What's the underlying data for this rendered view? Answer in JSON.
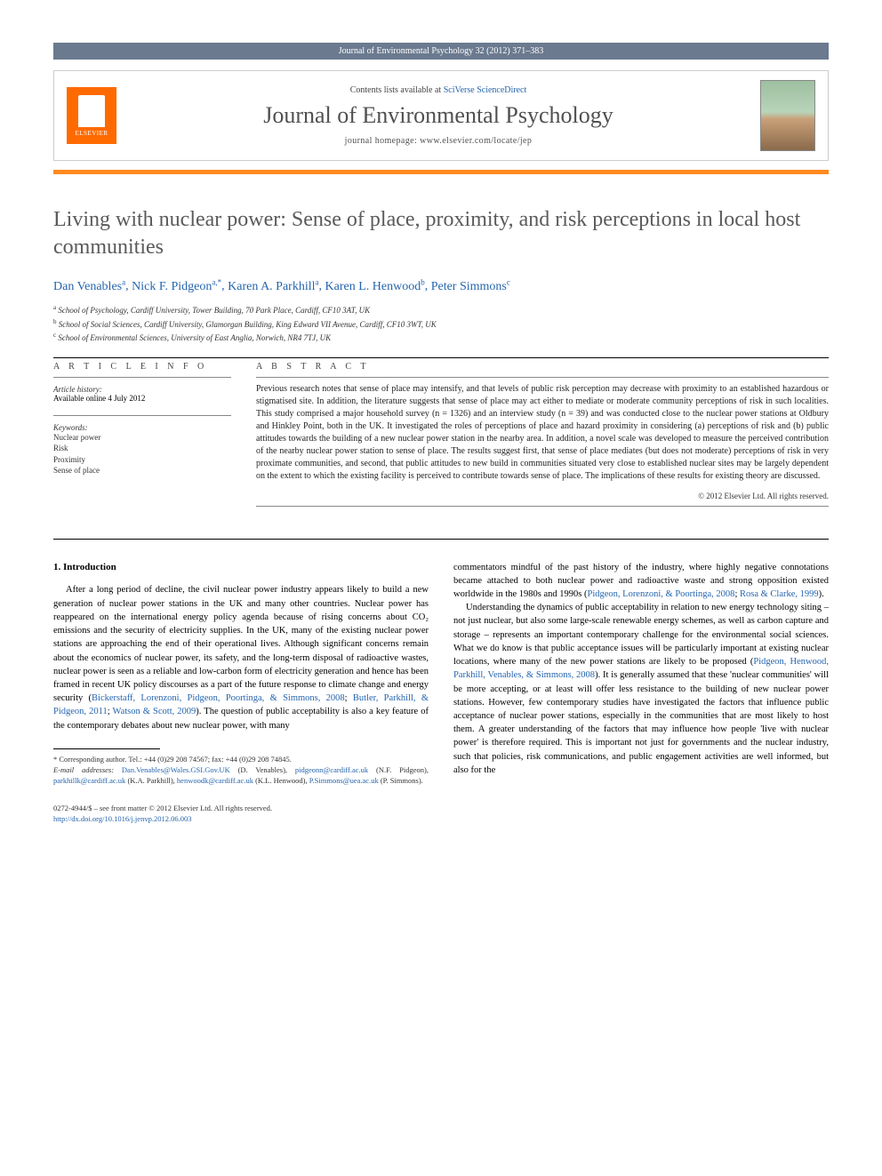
{
  "header": {
    "citation": "Journal of Environmental Psychology 32 (2012) 371–383"
  },
  "panel": {
    "contents_prefix": "Contents lists available at ",
    "contents_link": "SciVerse ScienceDirect",
    "journal_name": "Journal of Environmental Psychology",
    "homepage_prefix": "journal homepage: ",
    "homepage_url": "www.elsevier.com/locate/jep",
    "elsevier_label": "ELSEVIER"
  },
  "title": "Living with nuclear power: Sense of place, proximity, and risk perceptions in local host communities",
  "authors_html": "Dan Venables|a|, Nick F. Pidgeon|a,*|, Karen A. Parkhill|a|, Karen L. Henwood|b|, Peter Simmons|c",
  "affiliations": {
    "a": "School of Psychology, Cardiff University, Tower Building, 70 Park Place, Cardiff, CF10 3AT, UK",
    "b": "School of Social Sciences, Cardiff University, Glamorgan Building, King Edward VII Avenue, Cardiff, CF10 3WT, UK",
    "c": "School of Environmental Sciences, University of East Anglia, Norwich, NR4 7TJ, UK"
  },
  "article_info": {
    "heading": "A R T I C L E   I N F O",
    "history_label": "Article history:",
    "history_value": "Available online 4 July 2012",
    "keywords_label": "Keywords:",
    "keywords": [
      "Nuclear power",
      "Risk",
      "Proximity",
      "Sense of place"
    ]
  },
  "abstract": {
    "heading": "A B S T R A C T",
    "text": "Previous research notes that sense of place may intensify, and that levels of public risk perception may decrease with proximity to an established hazardous or stigmatised site. In addition, the literature suggests that sense of place may act either to mediate or moderate community perceptions of risk in such localities. This study comprised a major household survey (n = 1326) and an interview study (n = 39) and was conducted close to the nuclear power stations at Oldbury and Hinkley Point, both in the UK. It investigated the roles of perceptions of place and hazard proximity in considering (a) perceptions of risk and (b) public attitudes towards the building of a new nuclear power station in the nearby area. In addition, a novel scale was developed to measure the perceived contribution of the nearby nuclear power station to sense of place. The results suggest first, that sense of place mediates (but does not moderate) perceptions of risk in very proximate communities, and second, that public attitudes to new build in communities situated very close to established nuclear sites may be largely dependent on the extent to which the existing facility is perceived to contribute towards sense of place. The implications of these results for existing theory are discussed.",
    "copyright": "© 2012 Elsevier Ltd. All rights reserved."
  },
  "body": {
    "section_number": "1.",
    "section_title": "Introduction",
    "col1_p1_a": "After a long period of decline, the civil nuclear power industry appears likely to build a new generation of nuclear power stations in the UK and many other countries. Nuclear power has reappeared on the international energy policy agenda because of rising concerns about CO₂ emissions and the security of electricity supplies. In the UK, many of the existing nuclear power stations are approaching the end of their operational lives. Although significant concerns remain about the economics of nuclear power, its safety, and the long-term disposal of radioactive wastes, nuclear power is seen as a reliable and low-carbon form of electricity generation and hence has been framed in recent UK policy discourses as a part of the future response to climate change and energy security (",
    "col1_cite1": "Bickerstaff, Lorenzoni, Pidgeon, Poortinga, & Simmons, 2008",
    "col1_p1_b": "; ",
    "col1_cite2": "Butler, Parkhill, & Pidgeon, 2011",
    "col1_p1_c": "; ",
    "col1_cite3": "Watson & Scott, 2009",
    "col1_p1_d": "). The question of public acceptability is also a key feature of the contemporary debates about new nuclear power, with many",
    "col2_p1_a": "commentators mindful of the past history of the industry, where highly negative connotations became attached to both nuclear power and radioactive waste and strong opposition existed worldwide in the 1980s and 1990s (",
    "col2_cite1": "Pidgeon, Lorenzoni, & Poortinga, 2008",
    "col2_p1_b": "; ",
    "col2_cite2": "Rosa & Clarke, 1999",
    "col2_p1_c": ").",
    "col2_p2_a": "Understanding the dynamics of public acceptability in relation to new energy technology siting – not just nuclear, but also some large-scale renewable energy schemes, as well as carbon capture and storage – represents an important contemporary challenge for the environmental social sciences. What we do know is that public acceptance issues will be particularly important at existing nuclear locations, where many of the new power stations are likely to be proposed (",
    "col2_cite3": "Pidgeon, Henwood, Parkhill, Venables, & Simmons, 2008",
    "col2_p2_b": "). It is generally assumed that these 'nuclear communities' will be more accepting, or at least will offer less resistance to the building of new nuclear power stations. However, few contemporary studies have investigated the factors that influence public acceptance of nuclear power stations, especially in the communities that are most likely to host them. A greater understanding of the factors that may influence how people 'live with nuclear power' is therefore required. This is important not just for governments and the nuclear industry, such that policies, risk communications, and public engagement activities are well informed, but also for the"
  },
  "footnotes": {
    "corresponding": "* Corresponding author. Tel.: +44 (0)29 208 74567; fax: +44 (0)29 208 74845.",
    "email_label": "E-mail addresses:",
    "emails": [
      {
        "addr": "Dan.Venables@Wales.GSI.Gov.UK",
        "who": "(D. Venables),"
      },
      {
        "addr": "pidgeonn@cardiff.ac.uk",
        "who": "(N.F. Pidgeon),"
      },
      {
        "addr": "parkhillk@cardiff.ac.uk",
        "who": "(K.A. Parkhill),"
      },
      {
        "addr": "henwoodk@cardiff.ac.uk",
        "who": "(K.L. Henwood),"
      },
      {
        "addr": "P.Simmons@uea.ac.uk",
        "who": "(P. Simmons)."
      }
    ]
  },
  "bottom": {
    "issn_line": "0272-4944/$ – see front matter © 2012 Elsevier Ltd. All rights reserved.",
    "doi": "http://dx.doi.org/10.1016/j.jenvp.2012.06.003"
  },
  "colors": {
    "header_bar": "#6b7a8f",
    "elsevier_orange": "#ff6a00",
    "accent_bar": "#ff8a1f",
    "link": "#2565ae",
    "title_grey": "#5a5a5a"
  }
}
